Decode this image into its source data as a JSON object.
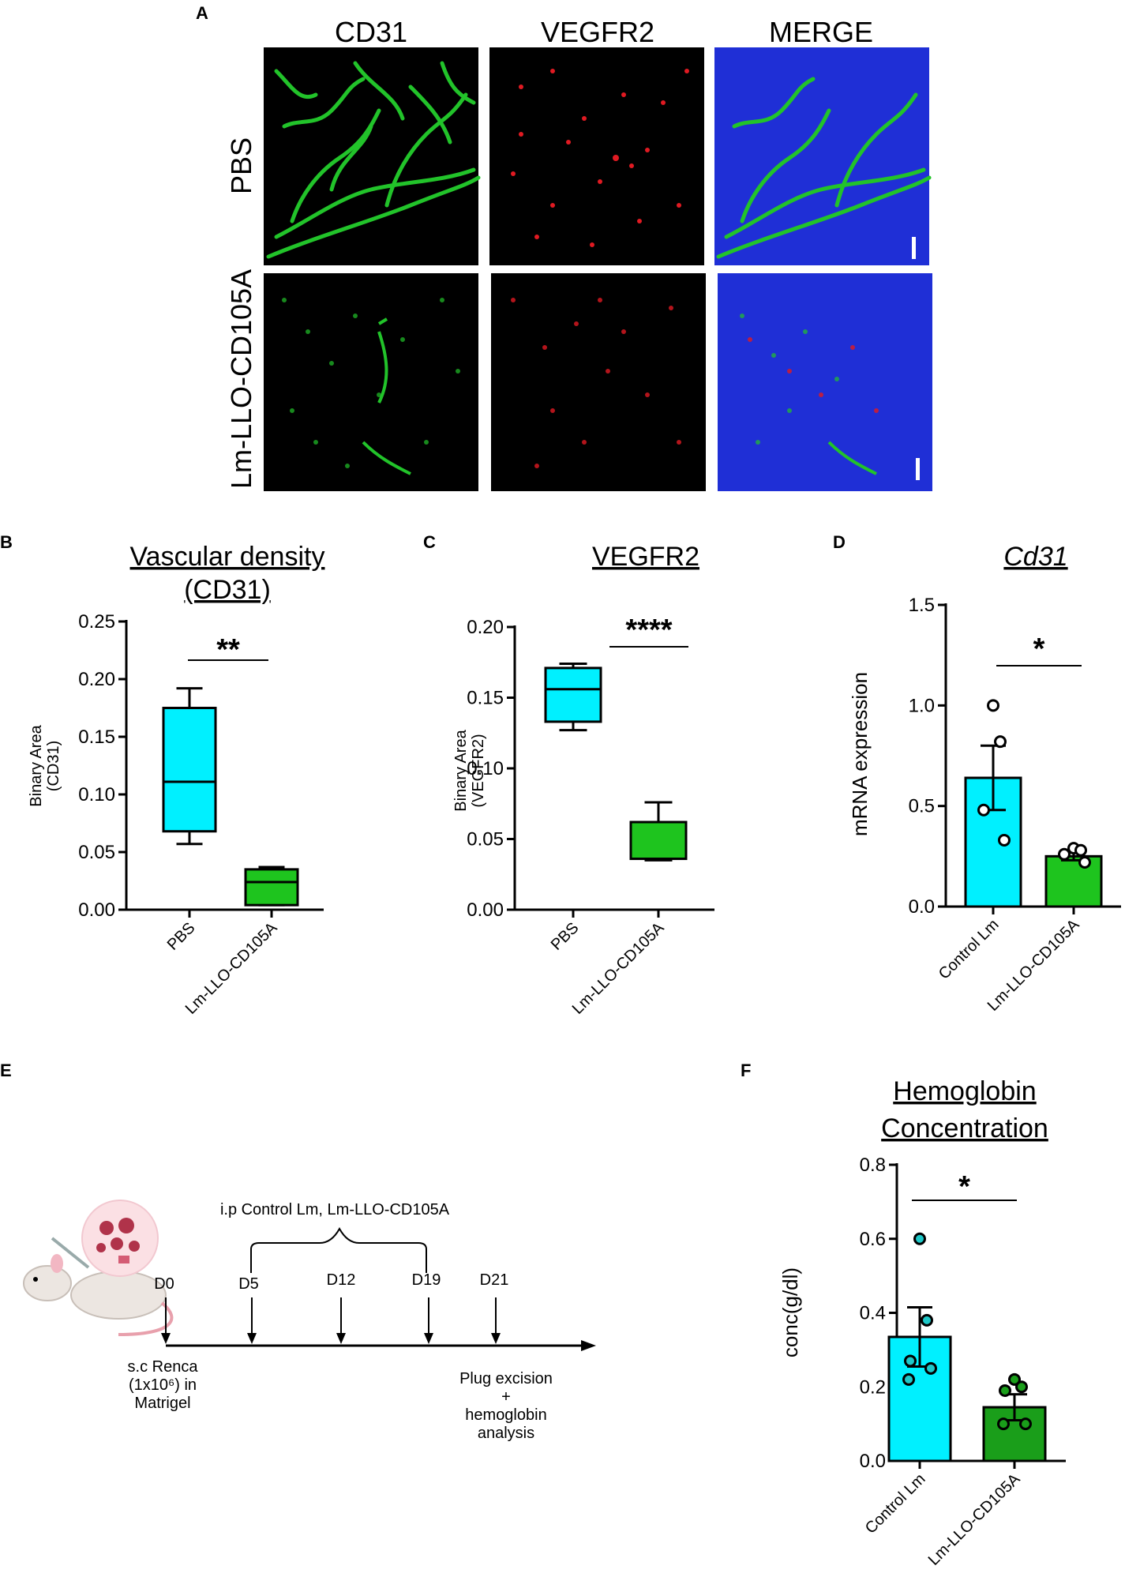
{
  "panels": {
    "A": "A",
    "B": "B",
    "C": "C",
    "D": "D",
    "E": "E",
    "F": "F"
  },
  "micrographs": {
    "columns": [
      "CD31",
      "VEGFR2",
      "MERGE"
    ],
    "rows": [
      "PBS",
      "Lm-LLO-CD105A"
    ],
    "colors": {
      "cd31": "#22c32a",
      "vegfr2": "#e01a22",
      "nuclei": "#1f2fd6",
      "background": "#000000"
    }
  },
  "chart_data": [
    {
      "type": "box",
      "panel": "B",
      "title": [
        "Vascular density",
        "(CD31)"
      ],
      "ylabel": [
        "Binary Area",
        "(CD31)"
      ],
      "categories": [
        "PBS",
        "Lm-LLO-CD105A"
      ],
      "series": [
        {
          "name": "PBS",
          "color": "#00f0ff",
          "min": 0.057,
          "q1": 0.068,
          "median": 0.111,
          "q3": 0.175,
          "max": 0.192
        },
        {
          "name": "Lm-LLO-CD105A",
          "color": "#1ec41e",
          "min": 0.004,
          "q1": 0.004,
          "median": 0.024,
          "q3": 0.035,
          "max": 0.037
        }
      ],
      "ylim": [
        0,
        0.25
      ],
      "yticks": [
        "0.00",
        "0.05",
        "0.10",
        "0.15",
        "0.20",
        "0.25"
      ],
      "significance": "**"
    },
    {
      "type": "box",
      "panel": "C",
      "title": [
        "VEGFR2"
      ],
      "ylabel": [
        "Binary Area",
        "(VEGFR2)"
      ],
      "categories": [
        "PBS",
        "Lm-LLO-CD105A"
      ],
      "series": [
        {
          "name": "PBS",
          "color": "#00f0ff",
          "min": 0.127,
          "q1": 0.133,
          "median": 0.156,
          "q3": 0.171,
          "max": 0.174
        },
        {
          "name": "Lm-LLO-CD105A",
          "color": "#1ec41e",
          "min": 0.035,
          "q1": 0.036,
          "median": 0.036,
          "q3": 0.062,
          "max": 0.076
        }
      ],
      "ylim": [
        0,
        0.2
      ],
      "yticks": [
        "0.00",
        "0.05",
        "0.10",
        "0.15",
        "0.20"
      ],
      "significance": "****"
    },
    {
      "type": "bar",
      "panel": "D",
      "title": [
        "Cd31"
      ],
      "ylabel": [
        "mRNA expression"
      ],
      "categories": [
        "Control Lm",
        "Lm-LLO-CD105A"
      ],
      "series": [
        {
          "name": "Control Lm",
          "color": "#00f0ff",
          "point_fill": "#ffffff",
          "mean": 0.64,
          "sem_low": 0.48,
          "sem_high": 0.8,
          "points": [
            1.0,
            0.82,
            0.48,
            0.33
          ]
        },
        {
          "name": "Lm-LLO-CD105A",
          "color": "#1ec41e",
          "point_fill": "#ffffff",
          "mean": 0.25,
          "sem_low": 0.23,
          "sem_high": 0.27,
          "points": [
            0.29,
            0.28,
            0.26,
            0.22
          ]
        }
      ],
      "ylim": [
        0,
        1.5
      ],
      "yticks": [
        "0.0",
        "0.5",
        "1.0",
        "1.5"
      ],
      "significance": "*"
    },
    {
      "type": "bar",
      "panel": "F",
      "title": [
        "Hemoglobin",
        "Concentration"
      ],
      "ylabel": [
        "conc(g/dl)"
      ],
      "categories": [
        "Control Lm",
        "Lm-LLO-CD105A"
      ],
      "series": [
        {
          "name": "Control Lm",
          "color": "#00f0ff",
          "point_fill": "#1ec8c8",
          "mean": 0.335,
          "sem_low": 0.255,
          "sem_high": 0.415,
          "points": [
            0.6,
            0.38,
            0.27,
            0.25,
            0.22
          ]
        },
        {
          "name": "Lm-LLO-CD105A",
          "color": "#1a9e1a",
          "point_fill": "#1a9e1a",
          "mean": 0.145,
          "sem_low": 0.11,
          "sem_high": 0.18,
          "points": [
            0.22,
            0.2,
            0.19,
            0.1,
            0.1
          ]
        }
      ],
      "ylim": [
        0,
        0.8
      ],
      "yticks": [
        "0.0",
        "0.2",
        "0.4",
        "0.6",
        "0.8"
      ],
      "significance": "*"
    }
  ],
  "timeline": {
    "days": [
      "D0",
      "D5",
      "D12",
      "D19",
      "D21"
    ],
    "treatment_label": "i.p Control Lm, Lm-LLO-CD105A",
    "start_label": [
      "s.c Renca",
      "(1x10⁶) in",
      "Matrigel"
    ],
    "end_label": [
      "Plug excision",
      "+",
      "hemoglobin",
      "analysis"
    ]
  }
}
